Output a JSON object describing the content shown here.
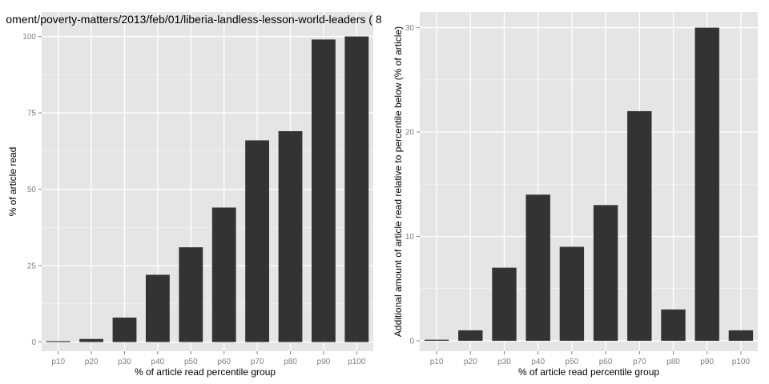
{
  "chart_data": [
    {
      "type": "bar",
      "title": "oment/poverty-matters/2013/feb/01/liberia-landless-lesson-world-leaders ( 8",
      "xlabel": "% of article read percentile group",
      "ylabel": "% of article read",
      "categories": [
        "p10",
        "p20",
        "p30",
        "p40",
        "p50",
        "p60",
        "p70",
        "p80",
        "p90",
        "p100"
      ],
      "values": [
        0.3,
        1,
        8,
        22,
        31,
        44,
        66,
        69,
        99,
        100
      ],
      "ylim": [
        -3,
        108
      ],
      "yticks": [
        0,
        25,
        50,
        75,
        100
      ],
      "grid": true,
      "colors": {
        "bar": "#333333",
        "panel": "#e5e5e5",
        "grid": "#ffffff"
      }
    },
    {
      "type": "bar",
      "title": "",
      "xlabel": "% of article read percentile group",
      "ylabel": "Additional amount of article read relative to percentile below (% of article)",
      "categories": [
        "p10",
        "p20",
        "p30",
        "p40",
        "p50",
        "p60",
        "p70",
        "p80",
        "p90",
        "p100"
      ],
      "values": [
        0.1,
        1,
        7,
        14,
        9,
        13,
        22,
        3,
        30,
        1
      ],
      "ylim": [
        -1,
        31.5
      ],
      "yticks": [
        0,
        10,
        20,
        30
      ],
      "grid": true,
      "colors": {
        "bar": "#333333",
        "panel": "#e5e5e5",
        "grid": "#ffffff"
      }
    }
  ]
}
